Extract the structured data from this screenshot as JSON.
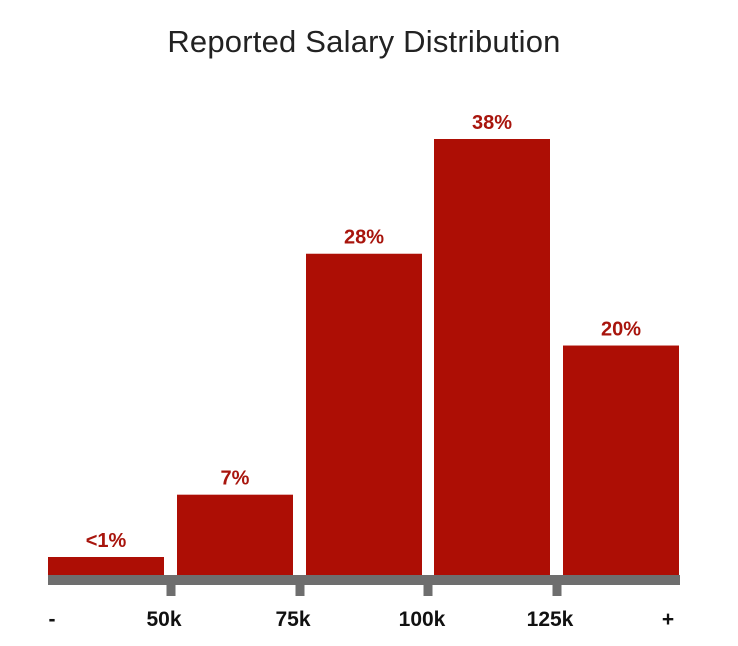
{
  "chart_data": {
    "type": "bar",
    "title": "Reported Salary Distribution",
    "categories": [
      "- to 50k",
      "50k to 75k",
      "75k to 100k",
      "100k to 125k",
      "125k to +"
    ],
    "values": [
      0.5,
      7,
      28,
      38,
      20
    ],
    "value_labels": [
      "<1%",
      "7%",
      "28%",
      "38%",
      "20%"
    ],
    "bin_edge_labels": [
      "-",
      "50k",
      "75k",
      "100k",
      "125k",
      "+"
    ],
    "xlabel": "",
    "ylabel": "",
    "ylim": [
      0,
      38
    ],
    "grid": false,
    "legend": "none",
    "colors": {
      "bar": "#ad0e05",
      "label": "#a8150d",
      "axis": "#6e6e6e",
      "tick_text": "#111111",
      "title": "#222222"
    }
  }
}
